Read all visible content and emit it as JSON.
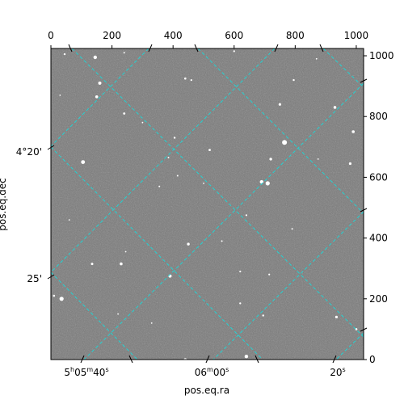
{
  "chart_data": {
    "type": "image",
    "xlabel": "pos.eq.ra",
    "ylabel": "pos.eq.dec",
    "pixel_axes": {
      "x": {
        "range": [
          0,
          1024
        ],
        "ticks": [
          "0",
          "200",
          "400",
          "600",
          "800",
          "1000"
        ],
        "position": "top"
      },
      "y": {
        "range": [
          0,
          1024
        ],
        "ticks": [
          "0",
          "200",
          "400",
          "600",
          "800",
          "1000"
        ],
        "position": "right"
      }
    },
    "world_axes": {
      "ra": {
        "ticks": [
          {
            "h": "5",
            "m": "05",
            "s": "40",
            "full": true
          },
          {
            "m": "06",
            "s": "00",
            "full": false
          },
          {
            "s": "20",
            "full": false
          }
        ]
      },
      "dec": {
        "ticks": [
          "4°20'",
          "25'"
        ]
      }
    },
    "grid": true,
    "grid_color": "#22d3d3",
    "image_background": "#7a7a7a",
    "stars": [
      {
        "x": 145,
        "y": 995,
        "b": 2.2
      },
      {
        "x": 45,
        "y": 1005,
        "b": 1.2
      },
      {
        "x": 240,
        "y": 1010,
        "b": 1.0
      },
      {
        "x": 600,
        "y": 1015,
        "b": 1.1
      },
      {
        "x": 160,
        "y": 910,
        "b": 2.0
      },
      {
        "x": 150,
        "y": 865,
        "b": 1.8
      },
      {
        "x": 240,
        "y": 810,
        "b": 1.4
      },
      {
        "x": 440,
        "y": 925,
        "b": 1.3
      },
      {
        "x": 460,
        "y": 920,
        "b": 1.1
      },
      {
        "x": 795,
        "y": 920,
        "b": 1.2
      },
      {
        "x": 750,
        "y": 840,
        "b": 1.6
      },
      {
        "x": 930,
        "y": 830,
        "b": 1.8
      },
      {
        "x": 990,
        "y": 750,
        "b": 1.8
      },
      {
        "x": 765,
        "y": 715,
        "b": 3.0
      },
      {
        "x": 720,
        "y": 660,
        "b": 1.7
      },
      {
        "x": 520,
        "y": 690,
        "b": 1.4
      },
      {
        "x": 405,
        "y": 730,
        "b": 1.2
      },
      {
        "x": 385,
        "y": 665,
        "b": 1.0
      },
      {
        "x": 105,
        "y": 650,
        "b": 2.4
      },
      {
        "x": 415,
        "y": 605,
        "b": 1.0
      },
      {
        "x": 710,
        "y": 580,
        "b": 2.6
      },
      {
        "x": 690,
        "y": 585,
        "b": 2.2
      },
      {
        "x": 980,
        "y": 645,
        "b": 1.6
      },
      {
        "x": 355,
        "y": 570,
        "b": 1.0
      },
      {
        "x": 640,
        "y": 475,
        "b": 1.1
      },
      {
        "x": 790,
        "y": 430,
        "b": 1.0
      },
      {
        "x": 450,
        "y": 380,
        "b": 1.7
      },
      {
        "x": 390,
        "y": 275,
        "b": 2.0
      },
      {
        "x": 230,
        "y": 315,
        "b": 1.8
      },
      {
        "x": 135,
        "y": 315,
        "b": 1.5
      },
      {
        "x": 620,
        "y": 290,
        "b": 1.1
      },
      {
        "x": 715,
        "y": 280,
        "b": 1.1
      },
      {
        "x": 35,
        "y": 200,
        "b": 2.6
      },
      {
        "x": 10,
        "y": 210,
        "b": 1.3
      },
      {
        "x": 620,
        "y": 185,
        "b": 1.2
      },
      {
        "x": 695,
        "y": 145,
        "b": 1.2
      },
      {
        "x": 935,
        "y": 140,
        "b": 1.6
      },
      {
        "x": 1000,
        "y": 100,
        "b": 1.4
      },
      {
        "x": 640,
        "y": 10,
        "b": 2.2
      },
      {
        "x": 440,
        "y": 0,
        "b": 1.8
      },
      {
        "x": 330,
        "y": 120,
        "b": 0.9
      },
      {
        "x": 245,
        "y": 355,
        "b": 0.9
      },
      {
        "x": 60,
        "y": 460,
        "b": 0.9
      },
      {
        "x": 560,
        "y": 390,
        "b": 1.0
      },
      {
        "x": 875,
        "y": 660,
        "b": 0.9
      },
      {
        "x": 300,
        "y": 780,
        "b": 0.9
      },
      {
        "x": 500,
        "y": 580,
        "b": 0.9
      },
      {
        "x": 30,
        "y": 870,
        "b": 0.9
      },
      {
        "x": 870,
        "y": 990,
        "b": 0.9
      },
      {
        "x": 220,
        "y": 150,
        "b": 0.9
      }
    ]
  }
}
